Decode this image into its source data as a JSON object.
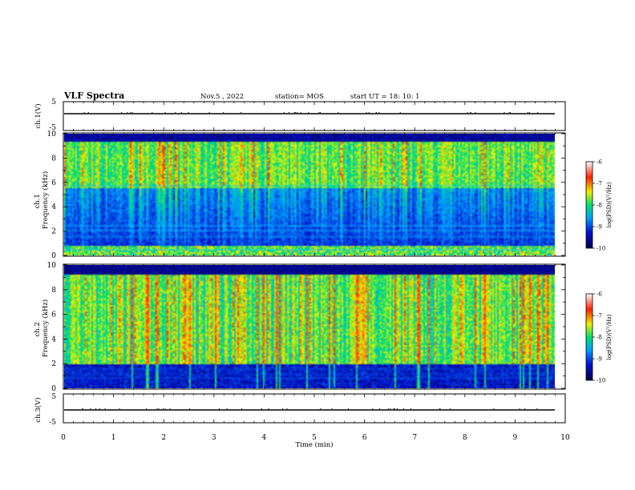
{
  "header": {
    "title": "VLF Spectra",
    "date": "Nov.5 , 2022",
    "station": "station= MOS",
    "start": "start UT = 18: 10: 1"
  },
  "chart_data": [
    {
      "type": "line",
      "panel": "ch1-waveform",
      "ylabel": "ch.1(V)",
      "ylim": [
        -5,
        5
      ],
      "yticks": [
        "5",
        "-5"
      ],
      "xlim": [
        0,
        10
      ],
      "series": [
        {
          "x": [
            0,
            10
          ],
          "values": [
            0,
            0
          ]
        }
      ]
    },
    {
      "type": "heatmap",
      "panel": "ch1-spectrogram",
      "ylabel": "ch.1\nFrequency (kHz)",
      "ylim": [
        0,
        10
      ],
      "yticks": [
        "0",
        "2",
        "4",
        "6",
        "8",
        "10"
      ],
      "xlim": [
        0,
        9.85
      ],
      "colorbar": {
        "label": "log(PSD)(V²/Hz)",
        "range": [
          -10,
          -6
        ],
        "ticks": [
          "-6",
          "-7",
          "-8",
          "-9",
          "-10"
        ]
      },
      "bands_khz": {
        "intense_low": [
          0,
          0.8
        ],
        "mid_weak": [
          0.8,
          5.5
        ],
        "bright_high": [
          5.5,
          9.3
        ],
        "dark_top": [
          9.3,
          10
        ]
      },
      "tone_lines_khz": [
        0.5,
        1.6,
        2.1,
        2.5,
        5.8
      ]
    },
    {
      "type": "heatmap",
      "panel": "ch2-spectrogram",
      "ylabel": "ch.2\nFrequency (kHz)",
      "ylim": [
        0,
        10
      ],
      "yticks": [
        "0",
        "2",
        "4",
        "6",
        "8",
        "10"
      ],
      "xlim": [
        0,
        9.85
      ],
      "colorbar": {
        "label": "log(PSD)(V²/Hz)",
        "range": [
          -10,
          -6
        ],
        "ticks": [
          "-6",
          "-7",
          "-8",
          "-9",
          "-10"
        ]
      },
      "bands_khz": {
        "dark_low": [
          0,
          1.9
        ],
        "bright_mid": [
          1.9,
          9.2
        ],
        "dark_top": [
          9.2,
          10
        ]
      },
      "tone_lines_khz": [
        0.9,
        1.2,
        1.6
      ]
    },
    {
      "type": "line",
      "panel": "ch3-waveform",
      "ylabel": "ch.3(V)",
      "ylim": [
        -5,
        5
      ],
      "yticks": [
        "5",
        "-5"
      ],
      "xlim": [
        0,
        10
      ],
      "series": [
        {
          "x": [
            0,
            10
          ],
          "values": [
            0,
            0
          ]
        }
      ]
    }
  ],
  "xaxis": {
    "label": "Time (min)",
    "ticks": [
      "0",
      "1",
      "2",
      "3",
      "4",
      "5",
      "6",
      "7",
      "8",
      "9",
      "10"
    ],
    "range": [
      0,
      10
    ]
  },
  "colors": {
    "low": "#00007a",
    "mid": "#00e070",
    "high": "#ff3000"
  }
}
